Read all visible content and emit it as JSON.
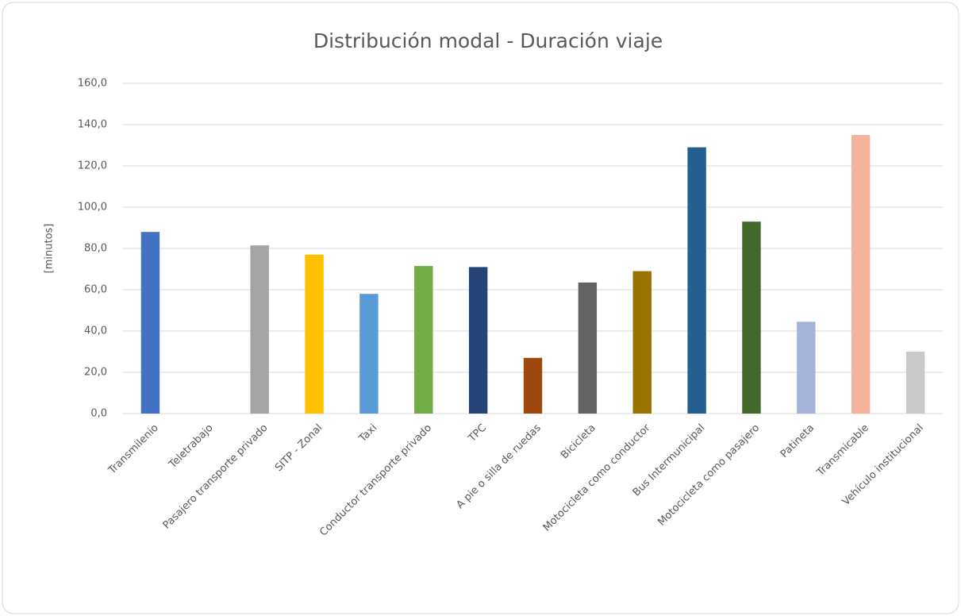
{
  "chart_data": {
    "type": "bar",
    "title": "Distribución modal - Duración viaje",
    "ylabel": "[minutos]",
    "categories": [
      "Transmilenio",
      "Teletrabajo",
      "Pasajero transporte privado",
      "SITP - Zonal",
      "Taxi",
      "Conductor transporte privado",
      "TPC",
      "A pie o silla de ruedas",
      "Bicicleta",
      "Motocicleta como conductor",
      "Bus Intermunicipal",
      "Motocicleta como pasajero",
      "Patineta",
      "Transmicable",
      "Vehículo institucional"
    ],
    "values": [
      88,
      0,
      81.5,
      77,
      58,
      71.5,
      71,
      27,
      63.5,
      69,
      129,
      93,
      44.5,
      135,
      30
    ],
    "colors": [
      "#4472c4",
      "#ed7d31",
      "#a5a5a5",
      "#ffc000",
      "#5b9bd5",
      "#70ad47",
      "#264478",
      "#9e480e",
      "#636363",
      "#997300",
      "#255e91",
      "#43682b",
      "#a5b3da",
      "#f4b39c",
      "#c9c9c9"
    ],
    "ylim": [
      0,
      160
    ],
    "yticks": [
      {
        "value": 0,
        "label": "0,0"
      },
      {
        "value": 20,
        "label": "20,0"
      },
      {
        "value": 40,
        "label": "40,0"
      },
      {
        "value": 60,
        "label": "60,0"
      },
      {
        "value": 80,
        "label": "80,0"
      },
      {
        "value": 100,
        "label": "100,0"
      },
      {
        "value": 120,
        "label": "120,0"
      },
      {
        "value": 140,
        "label": "140,0"
      },
      {
        "value": 160,
        "label": "160,0"
      }
    ],
    "grid": true
  }
}
